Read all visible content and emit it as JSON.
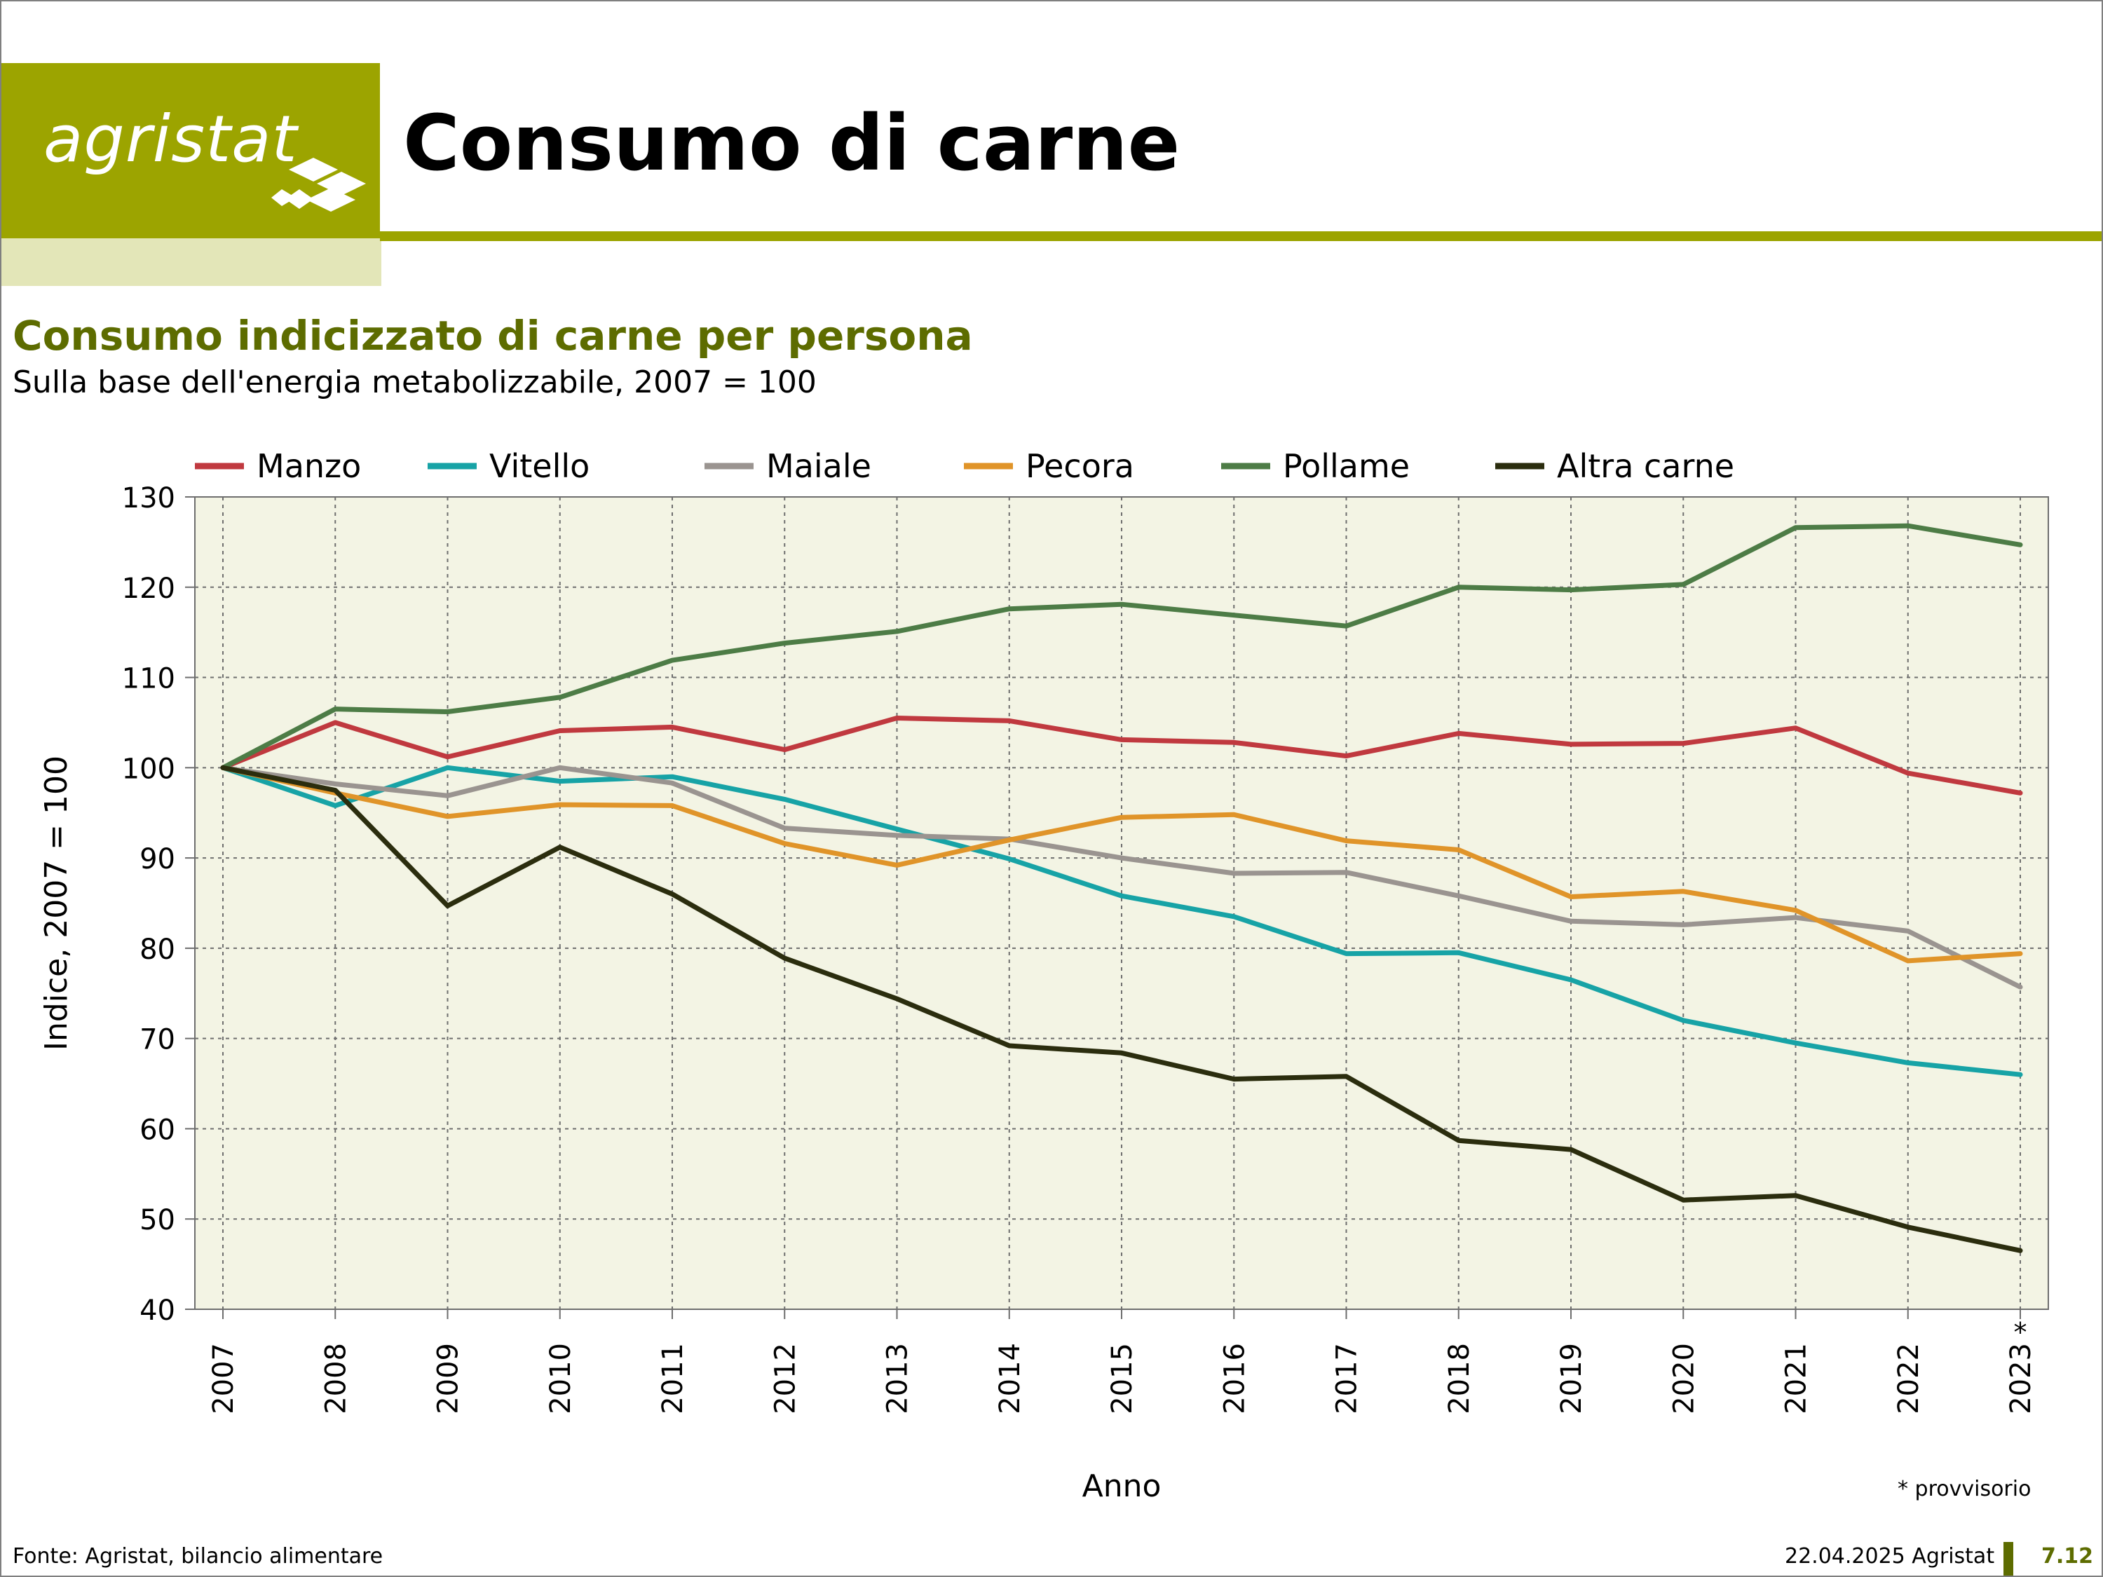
{
  "brand": {
    "logo_text": "agristat"
  },
  "header": {
    "title": "Consumo di carne"
  },
  "footer": {
    "source": "Fonte: Agristat, bilancio alimentare",
    "date": "22.04.2025 Agristat",
    "page": "7.12"
  },
  "colors": {
    "brand_green": "#9ca400",
    "title_green": "#5d6c00",
    "plot_background": "#f3f4e4"
  },
  "chart_data": {
    "type": "line",
    "title": "Consumo indicizzato di carne per persona",
    "subtitle": "Sulla base dell'energia metabolizzabile, 2007 = 100",
    "xlabel": "Anno",
    "ylabel": "Indice, 2007 = 100",
    "ylim": [
      40,
      130
    ],
    "yticks": [
      40,
      50,
      60,
      70,
      80,
      90,
      100,
      110,
      120,
      130
    ],
    "grid": true,
    "legend_position": "top",
    "categories": [
      "2007",
      "2008",
      "2009",
      "2010",
      "2011",
      "2012",
      "2013",
      "2014",
      "2015",
      "2016",
      "2017",
      "2018",
      "2019",
      "2020",
      "2021",
      "2022",
      "2023"
    ],
    "last_category_marker": "*",
    "note": "* provvisorio",
    "series": [
      {
        "name": "Manzo",
        "color": "#c0393f",
        "values": [
          100,
          105.0,
          101.2,
          104.1,
          104.5,
          102.0,
          105.5,
          105.2,
          103.1,
          102.8,
          101.3,
          103.8,
          102.6,
          102.7,
          104.4,
          99.4,
          97.2
        ]
      },
      {
        "name": "Vitello",
        "color": "#17a3a6",
        "values": [
          100,
          95.8,
          100.0,
          98.5,
          99.0,
          96.5,
          93.2,
          89.9,
          85.8,
          83.5,
          79.4,
          79.5,
          76.5,
          72.0,
          69.5,
          67.3,
          66.0
        ]
      },
      {
        "name": "Maiale",
        "color": "#9a9490",
        "values": [
          100,
          98.2,
          96.9,
          100.0,
          98.3,
          93.3,
          92.5,
          92.1,
          90.0,
          88.3,
          88.4,
          85.8,
          83.0,
          82.6,
          83.4,
          81.9,
          75.7
        ]
      },
      {
        "name": "Pecora",
        "color": "#e09429",
        "values": [
          100,
          97.2,
          94.6,
          95.9,
          95.8,
          91.6,
          89.2,
          92.0,
          94.5,
          94.8,
          91.9,
          90.9,
          85.7,
          86.3,
          84.2,
          78.6,
          79.4
        ]
      },
      {
        "name": "Pollame",
        "color": "#4d7c46",
        "values": [
          100,
          106.5,
          106.2,
          107.8,
          111.9,
          113.8,
          115.1,
          117.6,
          118.1,
          116.9,
          115.7,
          120.0,
          119.7,
          120.3,
          126.6,
          126.8,
          124.7
        ]
      },
      {
        "name": "Altra carne",
        "color": "#2b2d0e",
        "values": [
          100,
          97.5,
          84.7,
          91.2,
          86.0,
          78.9,
          74.4,
          69.2,
          68.4,
          65.5,
          65.8,
          58.7,
          57.7,
          52.1,
          52.6,
          49.1,
          46.5
        ]
      }
    ]
  }
}
